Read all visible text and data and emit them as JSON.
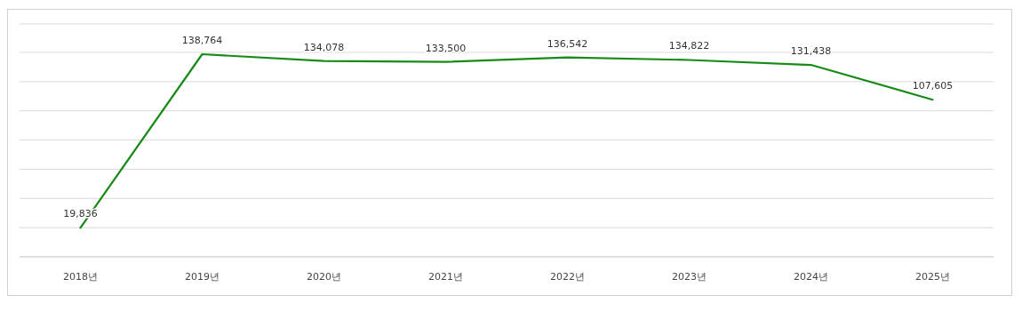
{
  "chart_data": {
    "type": "line",
    "categories": [
      "2018년",
      "2019년",
      "2020년",
      "2021년",
      "2022년",
      "2023년",
      "2024년",
      "2025년"
    ],
    "series": [
      {
        "color": "#178a17",
        "values": [
          19836,
          138764,
          134078,
          133500,
          136542,
          134822,
          131438,
          107605
        ],
        "value_labels": [
          "19,836",
          "138,764",
          "134,078",
          "133,500",
          "136,542",
          "134,822",
          "131,438",
          "107,605"
        ]
      }
    ],
    "grid": "y",
    "tick_labels": "x",
    "marker": "none",
    "line_style": "solid"
  }
}
